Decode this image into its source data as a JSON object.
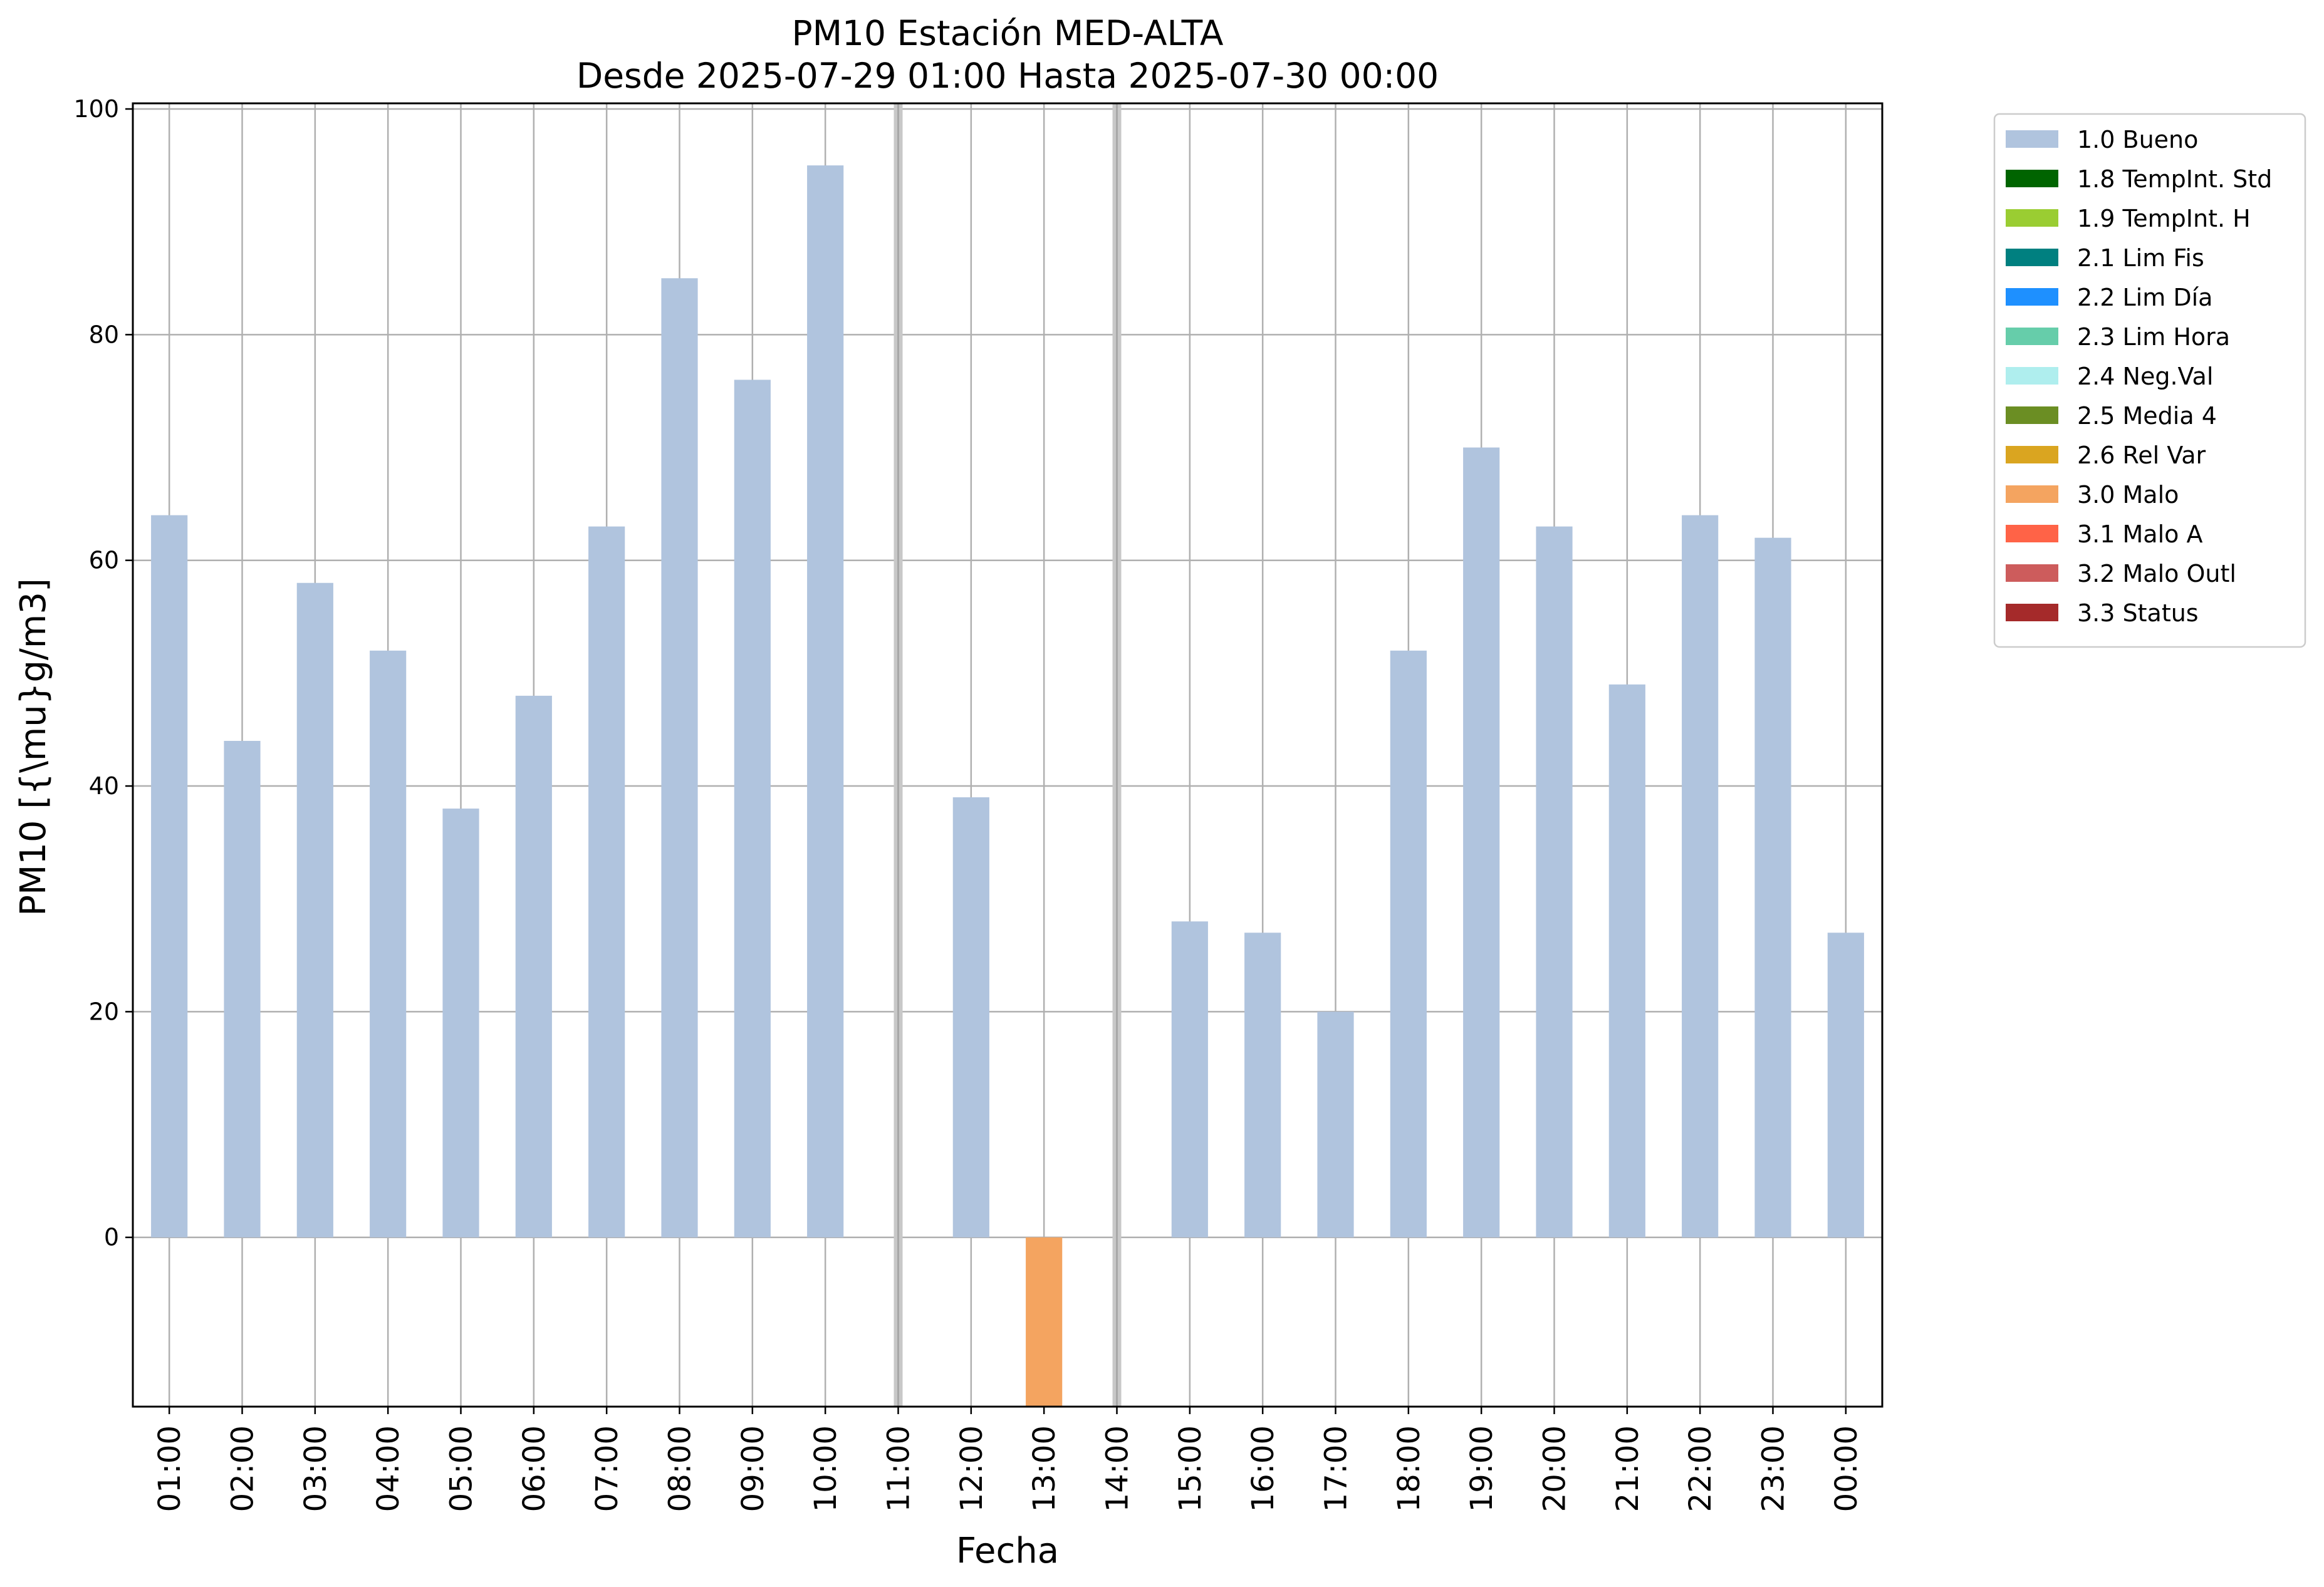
{
  "chart_data": {
    "type": "bar",
    "title": "PM10 Estación MED-ALTA",
    "subtitle": "Desde 2025-07-29 01:00 Hasta 2025-07-30 00:00",
    "xlabel": "Fecha",
    "ylabel": "PM10 [{\\mu}g/m3]",
    "ylim": [
      -15,
      100.5
    ],
    "yticks": [
      0,
      20,
      40,
      60,
      80,
      100
    ],
    "grid": true,
    "legend_position": "outside-right-top",
    "categories": [
      "01:00",
      "02:00",
      "03:00",
      "04:00",
      "05:00",
      "06:00",
      "07:00",
      "08:00",
      "09:00",
      "10:00",
      "11:00",
      "12:00",
      "13:00",
      "14:00",
      "15:00",
      "16:00",
      "17:00",
      "18:00",
      "19:00",
      "20:00",
      "21:00",
      "22:00",
      "23:00",
      "00:00"
    ],
    "values": [
      64,
      44,
      58,
      52,
      38,
      48,
      63,
      85,
      76,
      95,
      null,
      39,
      -15,
      null,
      28,
      27,
      20,
      52,
      70,
      63,
      49,
      64,
      62,
      27
    ],
    "bar_flags": [
      "1.0 Bueno",
      "1.0 Bueno",
      "1.0 Bueno",
      "1.0 Bueno",
      "1.0 Bueno",
      "1.0 Bueno",
      "1.0 Bueno",
      "1.0 Bueno",
      "1.0 Bueno",
      "1.0 Bueno",
      null,
      "1.0 Bueno",
      "3.0 Malo",
      null,
      "1.0 Bueno",
      "1.0 Bueno",
      "1.0 Bueno",
      "1.0 Bueno",
      "1.0 Bueno",
      "1.0 Bueno",
      "1.0 Bueno",
      "1.0 Bueno",
      "1.0 Bueno",
      "1.0 Bueno"
    ],
    "missing_markers": [
      "11:00",
      "14:00"
    ],
    "legend": [
      {
        "label": "1.0 Bueno",
        "color": "#b0c4de"
      },
      {
        "label": "1.8 TempInt. Std",
        "color": "#006400"
      },
      {
        "label": "1.9 TempInt. H",
        "color": "#9acd32"
      },
      {
        "label": "2.1 Lim Fis",
        "color": "#008080"
      },
      {
        "label": "2.2 Lim Día",
        "color": "#1e90ff"
      },
      {
        "label": "2.3 Lim Hora",
        "color": "#66cdaa"
      },
      {
        "label": "2.4 Neg.Val",
        "color": "#afeeee"
      },
      {
        "label": "2.5 Media 4",
        "color": "#6b8e23"
      },
      {
        "label": "2.6 Rel Var",
        "color": "#daa520"
      },
      {
        "label": "3.0 Malo",
        "color": "#f4a460"
      },
      {
        "label": "3.1 Malo A",
        "color": "#ff6347"
      },
      {
        "label": "3.2 Malo Outl",
        "color": "#cd5c5c"
      },
      {
        "label": "3.3 Status",
        "color": "#a52a2a"
      }
    ]
  }
}
